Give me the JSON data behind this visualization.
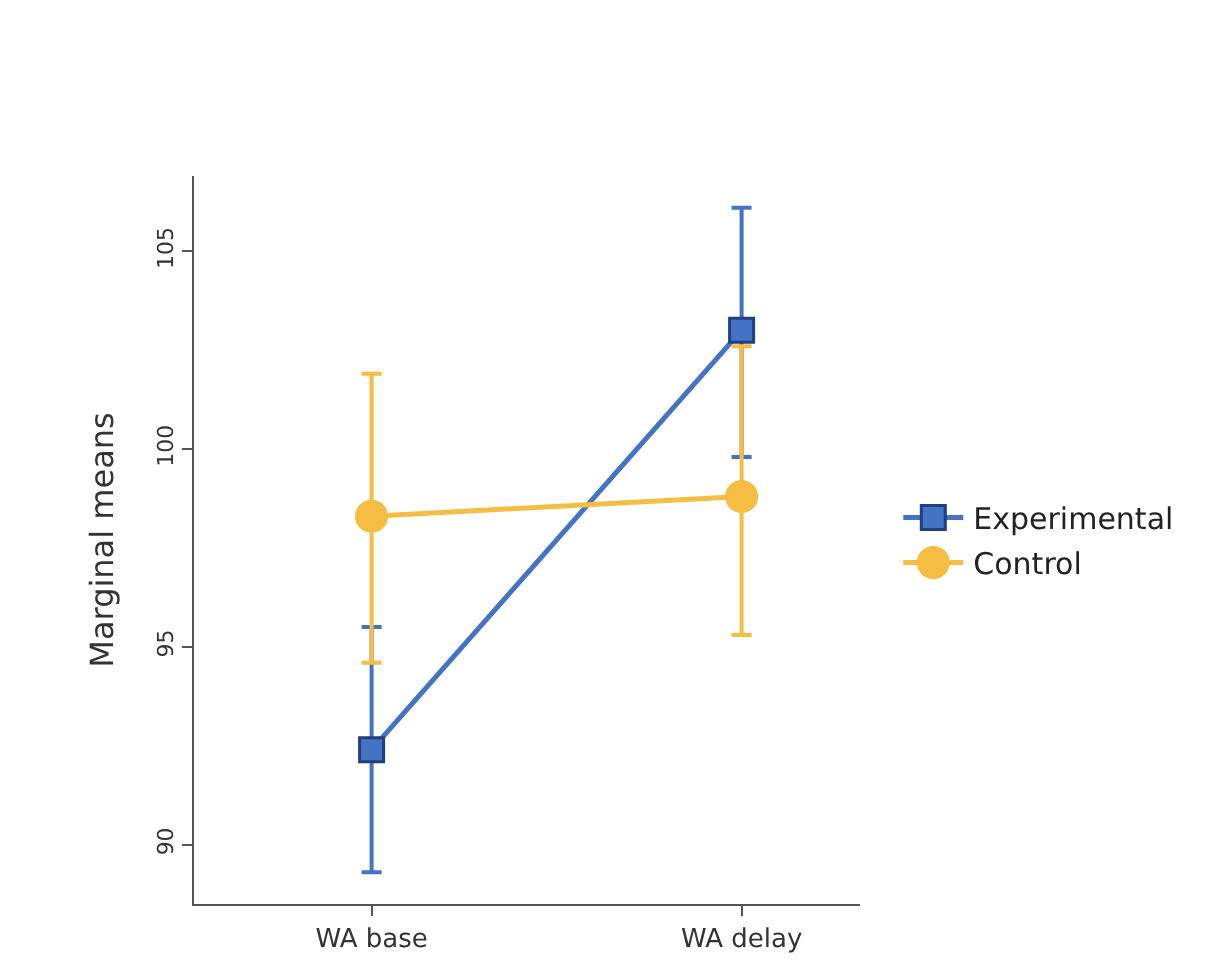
{
  "chart_data": {
    "type": "line",
    "ylabel": "Marginal means",
    "categories": [
      "WA base",
      "WA delay"
    ],
    "series": [
      {
        "name": "Experimental",
        "color": "#4472c4",
        "marker": "square",
        "values": [
          92.4,
          103.0
        ],
        "errors": [
          [
            89.3,
            95.5
          ],
          [
            99.8,
            106.1
          ]
        ]
      },
      {
        "name": "Control",
        "color": "#f5bd42",
        "marker": "circle",
        "values": [
          98.3,
          98.8
        ],
        "errors": [
          [
            94.6,
            101.9
          ],
          [
            95.3,
            102.6
          ]
        ]
      }
    ],
    "ylim": [
      88.5,
      106.9
    ],
    "yticks": [
      90,
      95,
      100,
      105
    ],
    "legend": "right"
  }
}
